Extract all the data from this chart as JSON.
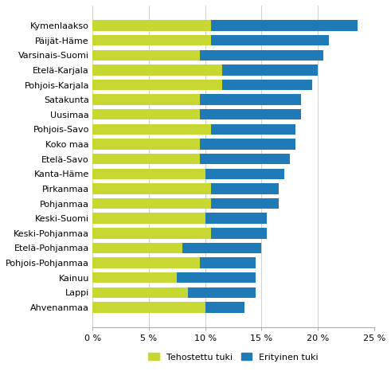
{
  "regions": [
    "Kymenlaakso",
    "Päijät-Häme",
    "Varsinais-Suomi",
    "Etelä-Karjala",
    "Pohjois-Karjala",
    "Satakunta",
    "Uusimaa",
    "Pohjois-Savo",
    "Koko maa",
    "Etelä-Savo",
    "Kanta-Häme",
    "Pirkanmaa",
    "Pohjanmaa",
    "Keski-Suomi",
    "Keski-Pohjanmaa",
    "Etelä-Pohjanmaa",
    "Pohjois-Pohjanmaa",
    "Kainuu",
    "Lappi",
    "Ahvenanmaa"
  ],
  "tehostettu": [
    10.5,
    10.5,
    9.5,
    11.5,
    11.5,
    9.5,
    9.5,
    10.5,
    9.5,
    9.5,
    10.0,
    10.5,
    10.5,
    10.0,
    10.5,
    8.0,
    9.5,
    7.5,
    8.5,
    10.0
  ],
  "erityinen": [
    13.0,
    10.5,
    11.0,
    8.5,
    8.0,
    9.0,
    9.0,
    7.5,
    8.5,
    8.0,
    7.0,
    6.0,
    6.0,
    5.5,
    5.0,
    7.0,
    5.0,
    7.0,
    6.0,
    3.5
  ],
  "color_tehostettu": "#c8d832",
  "color_erityinen": "#1f7ab8",
  "legend_tehostettu": "Tehostettu tuki",
  "legend_erityinen": "Erityinen tuki",
  "xlim": [
    0,
    25
  ],
  "xticks": [
    0,
    5,
    10,
    15,
    20,
    25
  ],
  "xticklabels": [
    "0 %",
    "5 %",
    "10 %",
    "15 %",
    "20 %",
    "25 %"
  ],
  "background_color": "#ffffff",
  "grid_color": "#d0d0d0",
  "bar_height": 0.72,
  "fontsize": 8.0,
  "legend_fontsize": 8.0
}
